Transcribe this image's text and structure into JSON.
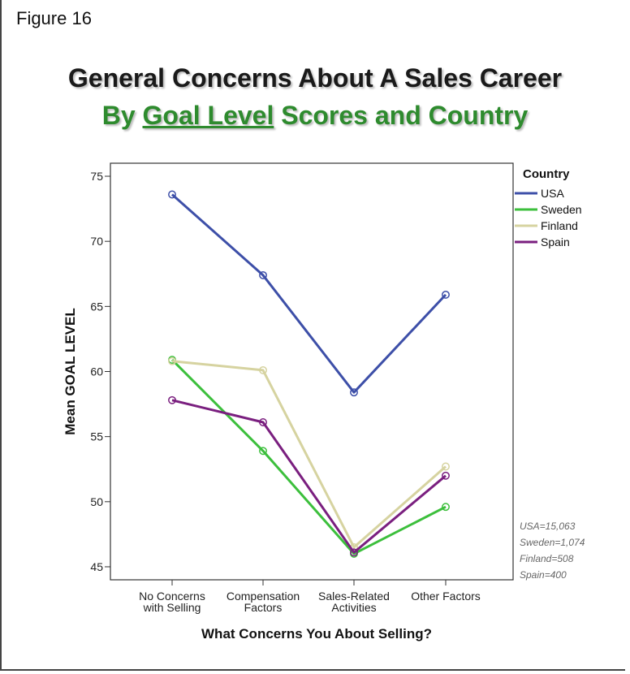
{
  "figure_label": "Figure 16",
  "title_line1": "General Concerns About A Sales Career",
  "title_line2_prefix": "By ",
  "title_line2_underlined": "Goal Level",
  "title_line2_suffix": " Scores and Country",
  "sample_notes": [
    "USA=15,063",
    "Sweden=1,074",
    "Finland=508",
    "Spain=400"
  ],
  "chart_data": {
    "type": "line",
    "xlabel": "What Concerns You About Selling?",
    "ylabel": "Mean GOAL LEVEL",
    "ylim": [
      44,
      76
    ],
    "yticks": [
      45,
      50,
      55,
      60,
      65,
      70,
      75
    ],
    "categories": [
      [
        "No Concerns",
        "with Selling"
      ],
      [
        "Compensation",
        "Factors"
      ],
      [
        "Sales-Related",
        "Activities"
      ],
      [
        "Other Factors"
      ]
    ],
    "legend_title": "Country",
    "legend_position": "right",
    "series": [
      {
        "name": "USA",
        "color": "#3d4fa8",
        "values": [
          73.6,
          67.4,
          58.4,
          65.9
        ]
      },
      {
        "name": "Sweden",
        "color": "#3cbf3c",
        "values": [
          60.9,
          53.9,
          46.0,
          49.6
        ]
      },
      {
        "name": "Finland",
        "color": "#d6d3a0",
        "values": [
          60.8,
          60.1,
          46.5,
          52.7
        ]
      },
      {
        "name": "Spain",
        "color": "#7a1f7f",
        "values": [
          57.8,
          56.1,
          46.1,
          52.0
        ]
      }
    ]
  }
}
